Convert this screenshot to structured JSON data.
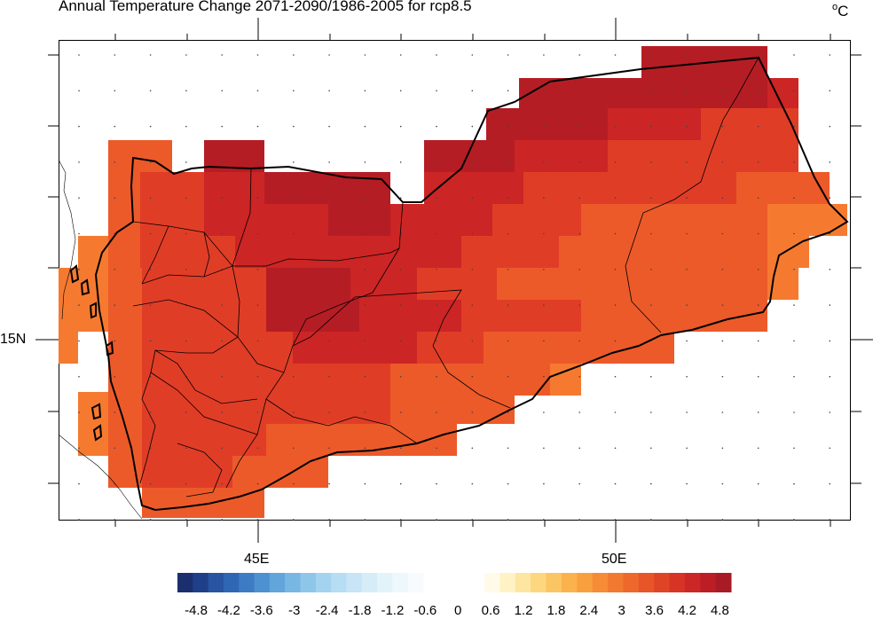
{
  "title": "Annual Temperature Change 2071-2090/1986-2005 for rcp8.5",
  "units": {
    "base": "o",
    "letter": "C"
  },
  "axes": {
    "x_labels": [
      "45E",
      "50E"
    ],
    "y_labels": [
      "15N"
    ]
  },
  "colorbar": {
    "labels": [
      "-4.8",
      "-4.2",
      "-3.6",
      "-3",
      "-2.4",
      "-1.8",
      "-1.2",
      "-0.6",
      "0",
      "0.6",
      "1.2",
      "1.8",
      "2.4",
      "3",
      "3.6",
      "4.2",
      "4.8"
    ],
    "negative_colors": [
      "#1b2f6e",
      "#1f3f8a",
      "#2755a2",
      "#3067b5",
      "#3d7cc4",
      "#4e91d0",
      "#62a5da",
      "#78b7e3",
      "#8ec6ea",
      "#a3d3ef",
      "#b6ddf3",
      "#c7e5f6",
      "#d6edf8",
      "#e3f3fa",
      "#eef7fc",
      "#f7fbfd"
    ],
    "positive_colors": [
      "#fffbe8",
      "#fff3c6",
      "#fee6a1",
      "#fdd77f",
      "#fcc563",
      "#fbb24c",
      "#f9a03e",
      "#f68c35",
      "#f27a30",
      "#ee682c",
      "#e85529",
      "#e04427",
      "#d73426",
      "#cc2727",
      "#bd1e26",
      "#a81b24"
    ]
  },
  "regions_legend": {
    "uae_label": ""
  }
}
